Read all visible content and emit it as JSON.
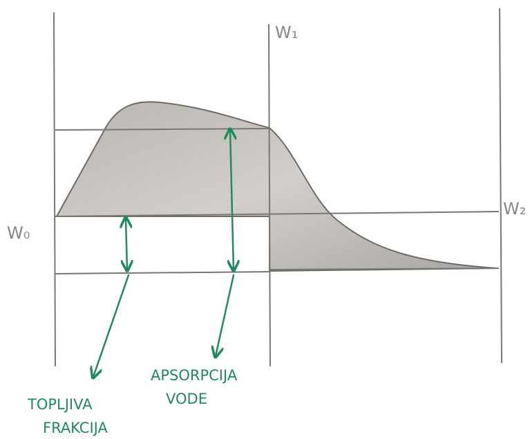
{
  "labels": {
    "w0": "W₀",
    "w1": "W₁",
    "w2": "W₂"
  },
  "annotations": {
    "soluble_fraction": [
      "TOPLJIVA",
      "FRAKCIJA"
    ],
    "water_absorption": [
      "APSORPCIJA",
      "VODE"
    ]
  }
}
